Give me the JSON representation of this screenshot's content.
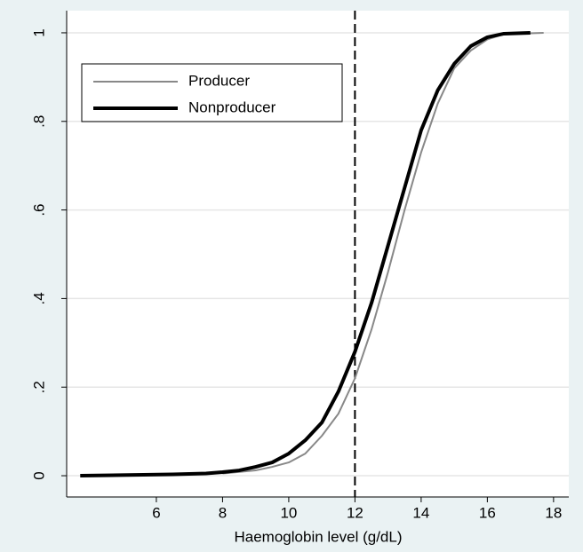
{
  "chart_data": {
    "type": "line",
    "x_label": "Haemoglobin level (g/dL)",
    "xlim": [
      3.29,
      18.46
    ],
    "ylim": [
      -0.048,
      1.05
    ],
    "xticks": [
      6,
      8,
      10,
      12,
      14,
      16,
      18
    ],
    "yticks": [
      0,
      {
        "value": 0.2,
        "label": ".2"
      },
      {
        "value": 0.4,
        "label": ".4"
      },
      {
        "value": 0.6,
        "label": ".6"
      },
      {
        "value": 0.8,
        "label": ".8"
      },
      1
    ],
    "grid": true,
    "xline": 12,
    "legend": "top-left",
    "series": [
      {
        "name": "Producer",
        "color": "#888888",
        "x": [
          8,
          9,
          9.5,
          10,
          10.5,
          11,
          11.5,
          12,
          12.5,
          13,
          13.5,
          14,
          14.5,
          15,
          15.5,
          16,
          16.5,
          17.7
        ],
        "values": [
          0.005,
          0.012,
          0.02,
          0.03,
          0.05,
          0.09,
          0.14,
          0.22,
          0.33,
          0.46,
          0.6,
          0.73,
          0.84,
          0.92,
          0.96,
          0.985,
          0.997,
          1
        ]
      },
      {
        "name": "Nonproducer",
        "color": "#000000",
        "x": [
          3.7,
          5.6,
          6.5,
          7,
          7.5,
          8,
          8.5,
          9,
          9.5,
          10,
          10.5,
          11,
          11.5,
          12,
          12.5,
          13,
          13.5,
          14,
          14.5,
          15,
          15.5,
          16,
          16.5,
          17.3
        ],
        "values": [
          0,
          0.002,
          0.003,
          0.004,
          0.005,
          0.008,
          0.012,
          0.02,
          0.03,
          0.05,
          0.08,
          0.12,
          0.19,
          0.28,
          0.39,
          0.52,
          0.65,
          0.78,
          0.87,
          0.93,
          0.97,
          0.99,
          0.998,
          1
        ]
      }
    ]
  }
}
